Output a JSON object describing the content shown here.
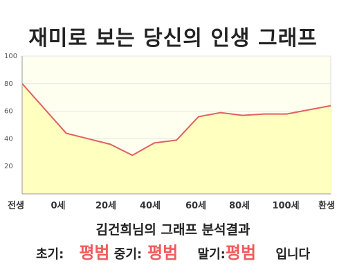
{
  "page": {
    "title": "재미로 보는 당신의 인생 그래프",
    "analysis_title": "김건희님의 그래프 분석결과",
    "result": {
      "early_label": "초기:",
      "early_value": "평범",
      "mid_label": "중기:",
      "mid_value": "평범",
      "late_label": "말기:",
      "late_value": "평범",
      "suffix": "입니다"
    }
  },
  "colors": {
    "line": "#e06060",
    "fill": "#ffffc0",
    "plot_bg": "#fffff0",
    "grid": "#e5e5e5",
    "accent": "#f05a5a"
  },
  "chart_data": {
    "type": "area",
    "title": "재미로 보는 당신의 인생 그래프",
    "ylim": [
      0,
      100
    ],
    "yticks": [
      "20",
      "40",
      "60",
      "80",
      "100"
    ],
    "x_tick_labels": [
      "전생",
      "0세",
      "20세",
      "40세",
      "60세",
      "80세",
      "100세",
      "환생"
    ],
    "grid": true,
    "series": [
      {
        "points": [
          {
            "x": -20,
            "y": 80
          },
          {
            "x": 0,
            "y": 44
          },
          {
            "x": 20,
            "y": 36
          },
          {
            "x": 30,
            "y": 28
          },
          {
            "x": 40,
            "y": 37
          },
          {
            "x": 50,
            "y": 39
          },
          {
            "x": 60,
            "y": 56
          },
          {
            "x": 70,
            "y": 59
          },
          {
            "x": 80,
            "y": 57
          },
          {
            "x": 90,
            "y": 58
          },
          {
            "x": 100,
            "y": 58
          },
          {
            "x": 120,
            "y": 64
          }
        ]
      }
    ]
  }
}
